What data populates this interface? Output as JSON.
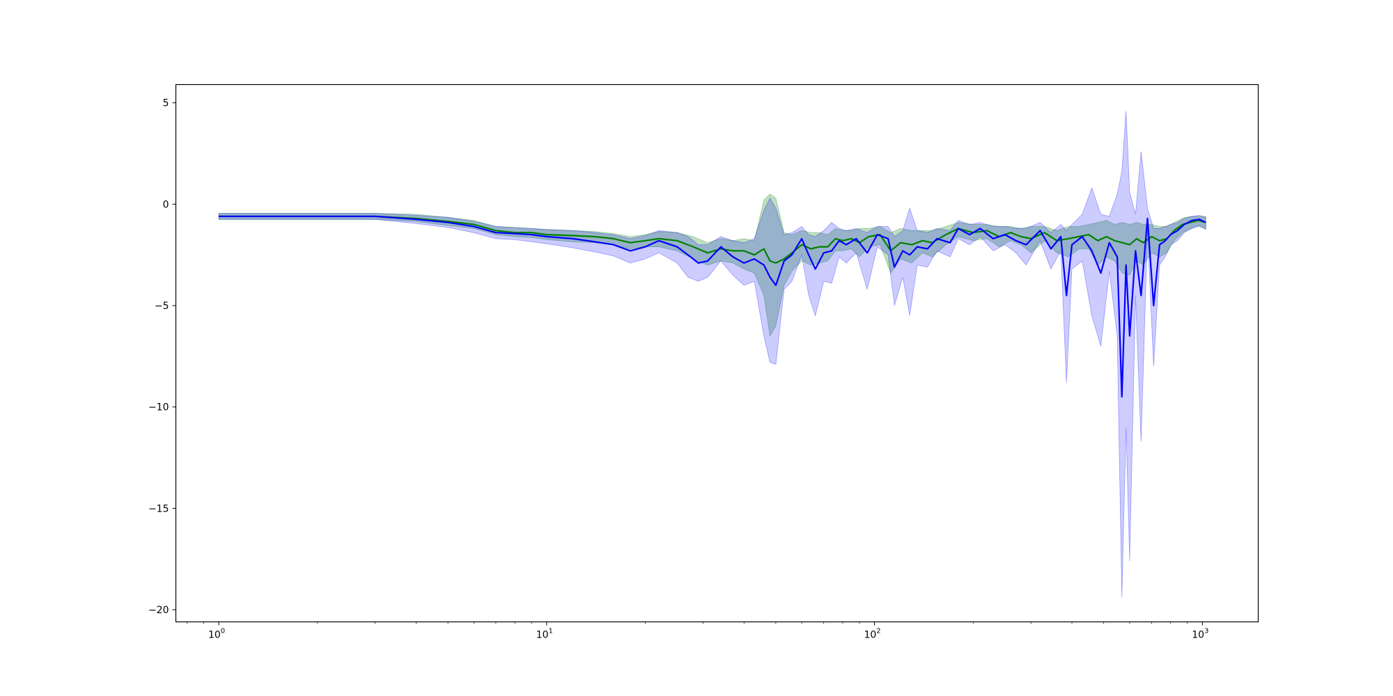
{
  "chart_data": {
    "type": "line",
    "title": "",
    "xlabel": "",
    "ylabel": "",
    "x_scale": "log",
    "xlim": [
      0.74,
      1480
    ],
    "ylim": [
      -20.6,
      5.9
    ],
    "grid": false,
    "legend": "none",
    "x_ticks": [
      {
        "value": 1,
        "base": "10",
        "exp": "0"
      },
      {
        "value": 10,
        "base": "10",
        "exp": "1"
      },
      {
        "value": 100,
        "base": "10",
        "exp": "2"
      },
      {
        "value": 1000,
        "base": "10",
        "exp": "3"
      }
    ],
    "y_ticks": [
      {
        "value": 5,
        "label": "5"
      },
      {
        "value": 0,
        "label": "0"
      },
      {
        "value": -5,
        "label": "−5"
      },
      {
        "value": -10,
        "label": "−10"
      },
      {
        "value": -15,
        "label": "−15"
      },
      {
        "value": -20,
        "label": "−20"
      }
    ],
    "series": [
      {
        "color": "#008000",
        "band_color": "#008000",
        "band_opacity": 0.25,
        "points": [
          [
            1,
            -0.6,
            -0.45,
            -0.75
          ],
          [
            2,
            -0.6,
            -0.45,
            -0.75
          ],
          [
            3,
            -0.6,
            -0.45,
            -0.75
          ],
          [
            4,
            -0.7,
            -0.5,
            -0.85
          ],
          [
            5,
            -0.85,
            -0.65,
            -1.05
          ],
          [
            6,
            -1.0,
            -0.8,
            -1.2
          ],
          [
            7,
            -1.3,
            -1.1,
            -1.5
          ],
          [
            8,
            -1.4,
            -1.15,
            -1.6
          ],
          [
            9,
            -1.4,
            -1.2,
            -1.65
          ],
          [
            10,
            -1.5,
            -1.25,
            -1.75
          ],
          [
            12,
            -1.55,
            -1.3,
            -1.85
          ],
          [
            14,
            -1.6,
            -1.35,
            -1.9
          ],
          [
            16,
            -1.7,
            -1.45,
            -2.0
          ],
          [
            18,
            -1.9,
            -1.6,
            -2.2
          ],
          [
            20,
            -1.8,
            -1.5,
            -2.1
          ],
          [
            22,
            -1.7,
            -1.35,
            -2.1
          ],
          [
            25,
            -1.8,
            -1.4,
            -2.3
          ],
          [
            28,
            -2.1,
            -1.6,
            -2.7
          ],
          [
            31,
            -2.4,
            -1.9,
            -3.0
          ],
          [
            34,
            -2.2,
            -1.7,
            -2.8
          ],
          [
            37,
            -2.3,
            -1.8,
            -2.9
          ],
          [
            40,
            -2.3,
            -1.7,
            -3.2
          ],
          [
            43,
            -2.5,
            -1.8,
            -3.4
          ],
          [
            46,
            -2.2,
            0.2,
            -4.5
          ],
          [
            48,
            -2.8,
            0.5,
            -6.5
          ],
          [
            50,
            -2.9,
            0.3,
            -6.0
          ],
          [
            53,
            -2.7,
            -1.4,
            -4.0
          ],
          [
            56,
            -2.4,
            -1.5,
            -3.3
          ],
          [
            60,
            -2.0,
            -1.3,
            -2.8
          ],
          [
            64,
            -2.2,
            -1.4,
            -3.0
          ],
          [
            68,
            -2.1,
            -1.4,
            -2.9
          ],
          [
            72,
            -2.1,
            -1.5,
            -2.8
          ],
          [
            76,
            -1.7,
            -1.2,
            -2.3
          ],
          [
            80,
            -1.8,
            -1.3,
            -2.3
          ],
          [
            85,
            -1.7,
            -1.3,
            -2.2
          ],
          [
            90,
            -1.9,
            -1.2,
            -2.6
          ],
          [
            96,
            -1.6,
            -1.2,
            -2.1
          ],
          [
            104,
            -1.5,
            -1.1,
            -2.0
          ],
          [
            112,
            -2.3,
            -1.4,
            -3.4
          ],
          [
            120,
            -1.9,
            -1.2,
            -2.7
          ],
          [
            130,
            -2.0,
            -1.3,
            -2.9
          ],
          [
            140,
            -1.8,
            -1.3,
            -2.4
          ],
          [
            150,
            -1.9,
            -1.3,
            -2.6
          ],
          [
            165,
            -1.5,
            -1.1,
            -2.0
          ],
          [
            180,
            -1.2,
            -0.9,
            -1.6
          ],
          [
            200,
            -1.4,
            -1.0,
            -1.8
          ],
          [
            220,
            -1.3,
            -1.0,
            -1.7
          ],
          [
            240,
            -1.6,
            -1.1,
            -2.1
          ],
          [
            260,
            -1.4,
            -1.1,
            -1.8
          ],
          [
            280,
            -1.6,
            -1.2,
            -2.0
          ],
          [
            300,
            -1.7,
            -1.1,
            -2.4
          ],
          [
            330,
            -1.4,
            -1.1,
            -1.8
          ],
          [
            360,
            -1.8,
            -1.3,
            -2.4
          ],
          [
            390,
            -1.7,
            -1.1,
            -2.6
          ],
          [
            420,
            -1.6,
            -1.1,
            -2.2
          ],
          [
            450,
            -1.5,
            -1.0,
            -2.2
          ],
          [
            480,
            -1.8,
            -0.9,
            -3.0
          ],
          [
            510,
            -1.6,
            -0.8,
            -2.6
          ],
          [
            540,
            -1.8,
            -1.0,
            -2.8
          ],
          [
            570,
            -1.9,
            -0.9,
            -3.4
          ],
          [
            600,
            -2.0,
            -1.0,
            -3.5
          ],
          [
            630,
            -1.7,
            -0.9,
            -2.8
          ],
          [
            660,
            -1.9,
            -1.0,
            -3.0
          ],
          [
            700,
            -1.6,
            -1.0,
            -2.4
          ],
          [
            740,
            -1.8,
            -1.1,
            -2.6
          ],
          [
            780,
            -1.7,
            -1.1,
            -2.4
          ],
          [
            820,
            -1.3,
            -0.9,
            -1.8
          ],
          [
            870,
            -1.0,
            -0.7,
            -1.4
          ],
          [
            920,
            -0.9,
            -0.6,
            -1.2
          ],
          [
            970,
            -0.8,
            -0.6,
            -1.1
          ],
          [
            1024,
            -0.9,
            -0.6,
            -1.2
          ]
        ]
      },
      {
        "color": "#0000ff",
        "band_color": "#0000ff",
        "band_opacity": 0.2,
        "points": [
          [
            1,
            -0.6,
            -0.45,
            -0.75
          ],
          [
            2,
            -0.6,
            -0.45,
            -0.75
          ],
          [
            3,
            -0.6,
            -0.45,
            -0.75
          ],
          [
            4,
            -0.75,
            -0.55,
            -0.95
          ],
          [
            5,
            -0.9,
            -0.65,
            -1.15
          ],
          [
            6,
            -1.1,
            -0.85,
            -1.4
          ],
          [
            7,
            -1.4,
            -1.1,
            -1.7
          ],
          [
            8,
            -1.45,
            -1.15,
            -1.75
          ],
          [
            9,
            -1.5,
            -1.2,
            -1.85
          ],
          [
            10,
            -1.6,
            -1.25,
            -1.95
          ],
          [
            12,
            -1.7,
            -1.3,
            -2.15
          ],
          [
            14,
            -1.85,
            -1.4,
            -2.35
          ],
          [
            16,
            -2.0,
            -1.5,
            -2.55
          ],
          [
            18,
            -2.3,
            -1.7,
            -2.9
          ],
          [
            20,
            -2.1,
            -1.55,
            -2.7
          ],
          [
            22,
            -1.8,
            -1.3,
            -2.4
          ],
          [
            25,
            -2.1,
            -1.4,
            -2.9
          ],
          [
            27,
            -2.5,
            -1.6,
            -3.6
          ],
          [
            29,
            -2.9,
            -2.0,
            -3.8
          ],
          [
            31,
            -2.8,
            -2.0,
            -3.6
          ],
          [
            34,
            -2.1,
            -1.6,
            -2.8
          ],
          [
            37,
            -2.6,
            -1.8,
            -3.5
          ],
          [
            40,
            -2.9,
            -1.9,
            -4.0
          ],
          [
            43,
            -2.7,
            -1.7,
            -3.8
          ],
          [
            46,
            -3.0,
            -0.3,
            -6.5
          ],
          [
            48,
            -3.6,
            0.3,
            -7.8
          ],
          [
            50,
            -4.0,
            -0.2,
            -7.9
          ],
          [
            53,
            -2.8,
            -1.5,
            -4.2
          ],
          [
            56,
            -2.5,
            -1.4,
            -3.8
          ],
          [
            60,
            -1.7,
            -1.1,
            -2.5
          ],
          [
            63,
            -2.5,
            -1.5,
            -4.5
          ],
          [
            66,
            -3.2,
            -1.6,
            -5.5
          ],
          [
            70,
            -2.4,
            -1.3,
            -3.8
          ],
          [
            74,
            -2.3,
            -0.9,
            -3.9
          ],
          [
            78,
            -1.8,
            -1.2,
            -2.6
          ],
          [
            82,
            -2.0,
            -1.3,
            -2.9
          ],
          [
            88,
            -1.7,
            -1.2,
            -2.4
          ],
          [
            95,
            -2.4,
            -1.4,
            -4.2
          ],
          [
            102,
            -1.5,
            -1.1,
            -2.1
          ],
          [
            110,
            -1.7,
            -1.1,
            -2.5
          ],
          [
            115,
            -3.1,
            -1.6,
            -5.0
          ],
          [
            122,
            -2.3,
            -1.3,
            -3.6
          ],
          [
            128,
            -2.5,
            -0.2,
            -5.5
          ],
          [
            135,
            -2.1,
            -1.3,
            -3.0
          ],
          [
            145,
            -2.2,
            -1.4,
            -3.1
          ],
          [
            155,
            -1.7,
            -1.2,
            -2.3
          ],
          [
            170,
            -1.9,
            -1.3,
            -2.6
          ],
          [
            180,
            -1.2,
            -0.8,
            -1.7
          ],
          [
            195,
            -1.5,
            -1.0,
            -2.0
          ],
          [
            210,
            -1.2,
            -0.9,
            -1.6
          ],
          [
            230,
            -1.7,
            -1.1,
            -2.3
          ],
          [
            250,
            -1.5,
            -1.1,
            -2.0
          ],
          [
            270,
            -1.8,
            -1.2,
            -2.4
          ],
          [
            290,
            -2.0,
            -1.2,
            -3.0
          ],
          [
            320,
            -1.3,
            -0.9,
            -1.8
          ],
          [
            345,
            -2.2,
            -1.4,
            -3.2
          ],
          [
            370,
            -1.6,
            -1.0,
            -2.3
          ],
          [
            385,
            -4.5,
            -1.3,
            -8.8
          ],
          [
            400,
            -2.0,
            -1.0,
            -3.2
          ],
          [
            430,
            -1.6,
            -0.5,
            -2.8
          ],
          [
            460,
            -2.3,
            0.8,
            -5.5
          ],
          [
            490,
            -3.4,
            -0.5,
            -7.0
          ],
          [
            520,
            -1.9,
            -0.6,
            -3.3
          ],
          [
            550,
            -2.6,
            0.5,
            -6.5
          ],
          [
            568,
            -9.5,
            1.6,
            -19.4
          ],
          [
            585,
            -3.0,
            4.6,
            -11.0
          ],
          [
            600,
            -6.5,
            0.6,
            -17.6
          ],
          [
            625,
            -2.3,
            -0.5,
            -4.5
          ],
          [
            650,
            -4.5,
            2.6,
            -11.7
          ],
          [
            680,
            -0.7,
            -0.2,
            -1.3
          ],
          [
            710,
            -5.0,
            -1.2,
            -8.0
          ],
          [
            740,
            -2.0,
            -1.2,
            -3.0
          ],
          [
            770,
            -1.8,
            -1.1,
            -2.6
          ],
          [
            800,
            -1.5,
            -1.0,
            -2.0
          ],
          [
            840,
            -1.3,
            -0.9,
            -1.8
          ],
          [
            880,
            -1.0,
            -0.7,
            -1.4
          ],
          [
            930,
            -0.8,
            -0.6,
            -1.2
          ],
          [
            980,
            -0.75,
            -0.55,
            -1.05
          ],
          [
            1024,
            -0.9,
            -0.65,
            -1.25
          ]
        ]
      }
    ]
  }
}
